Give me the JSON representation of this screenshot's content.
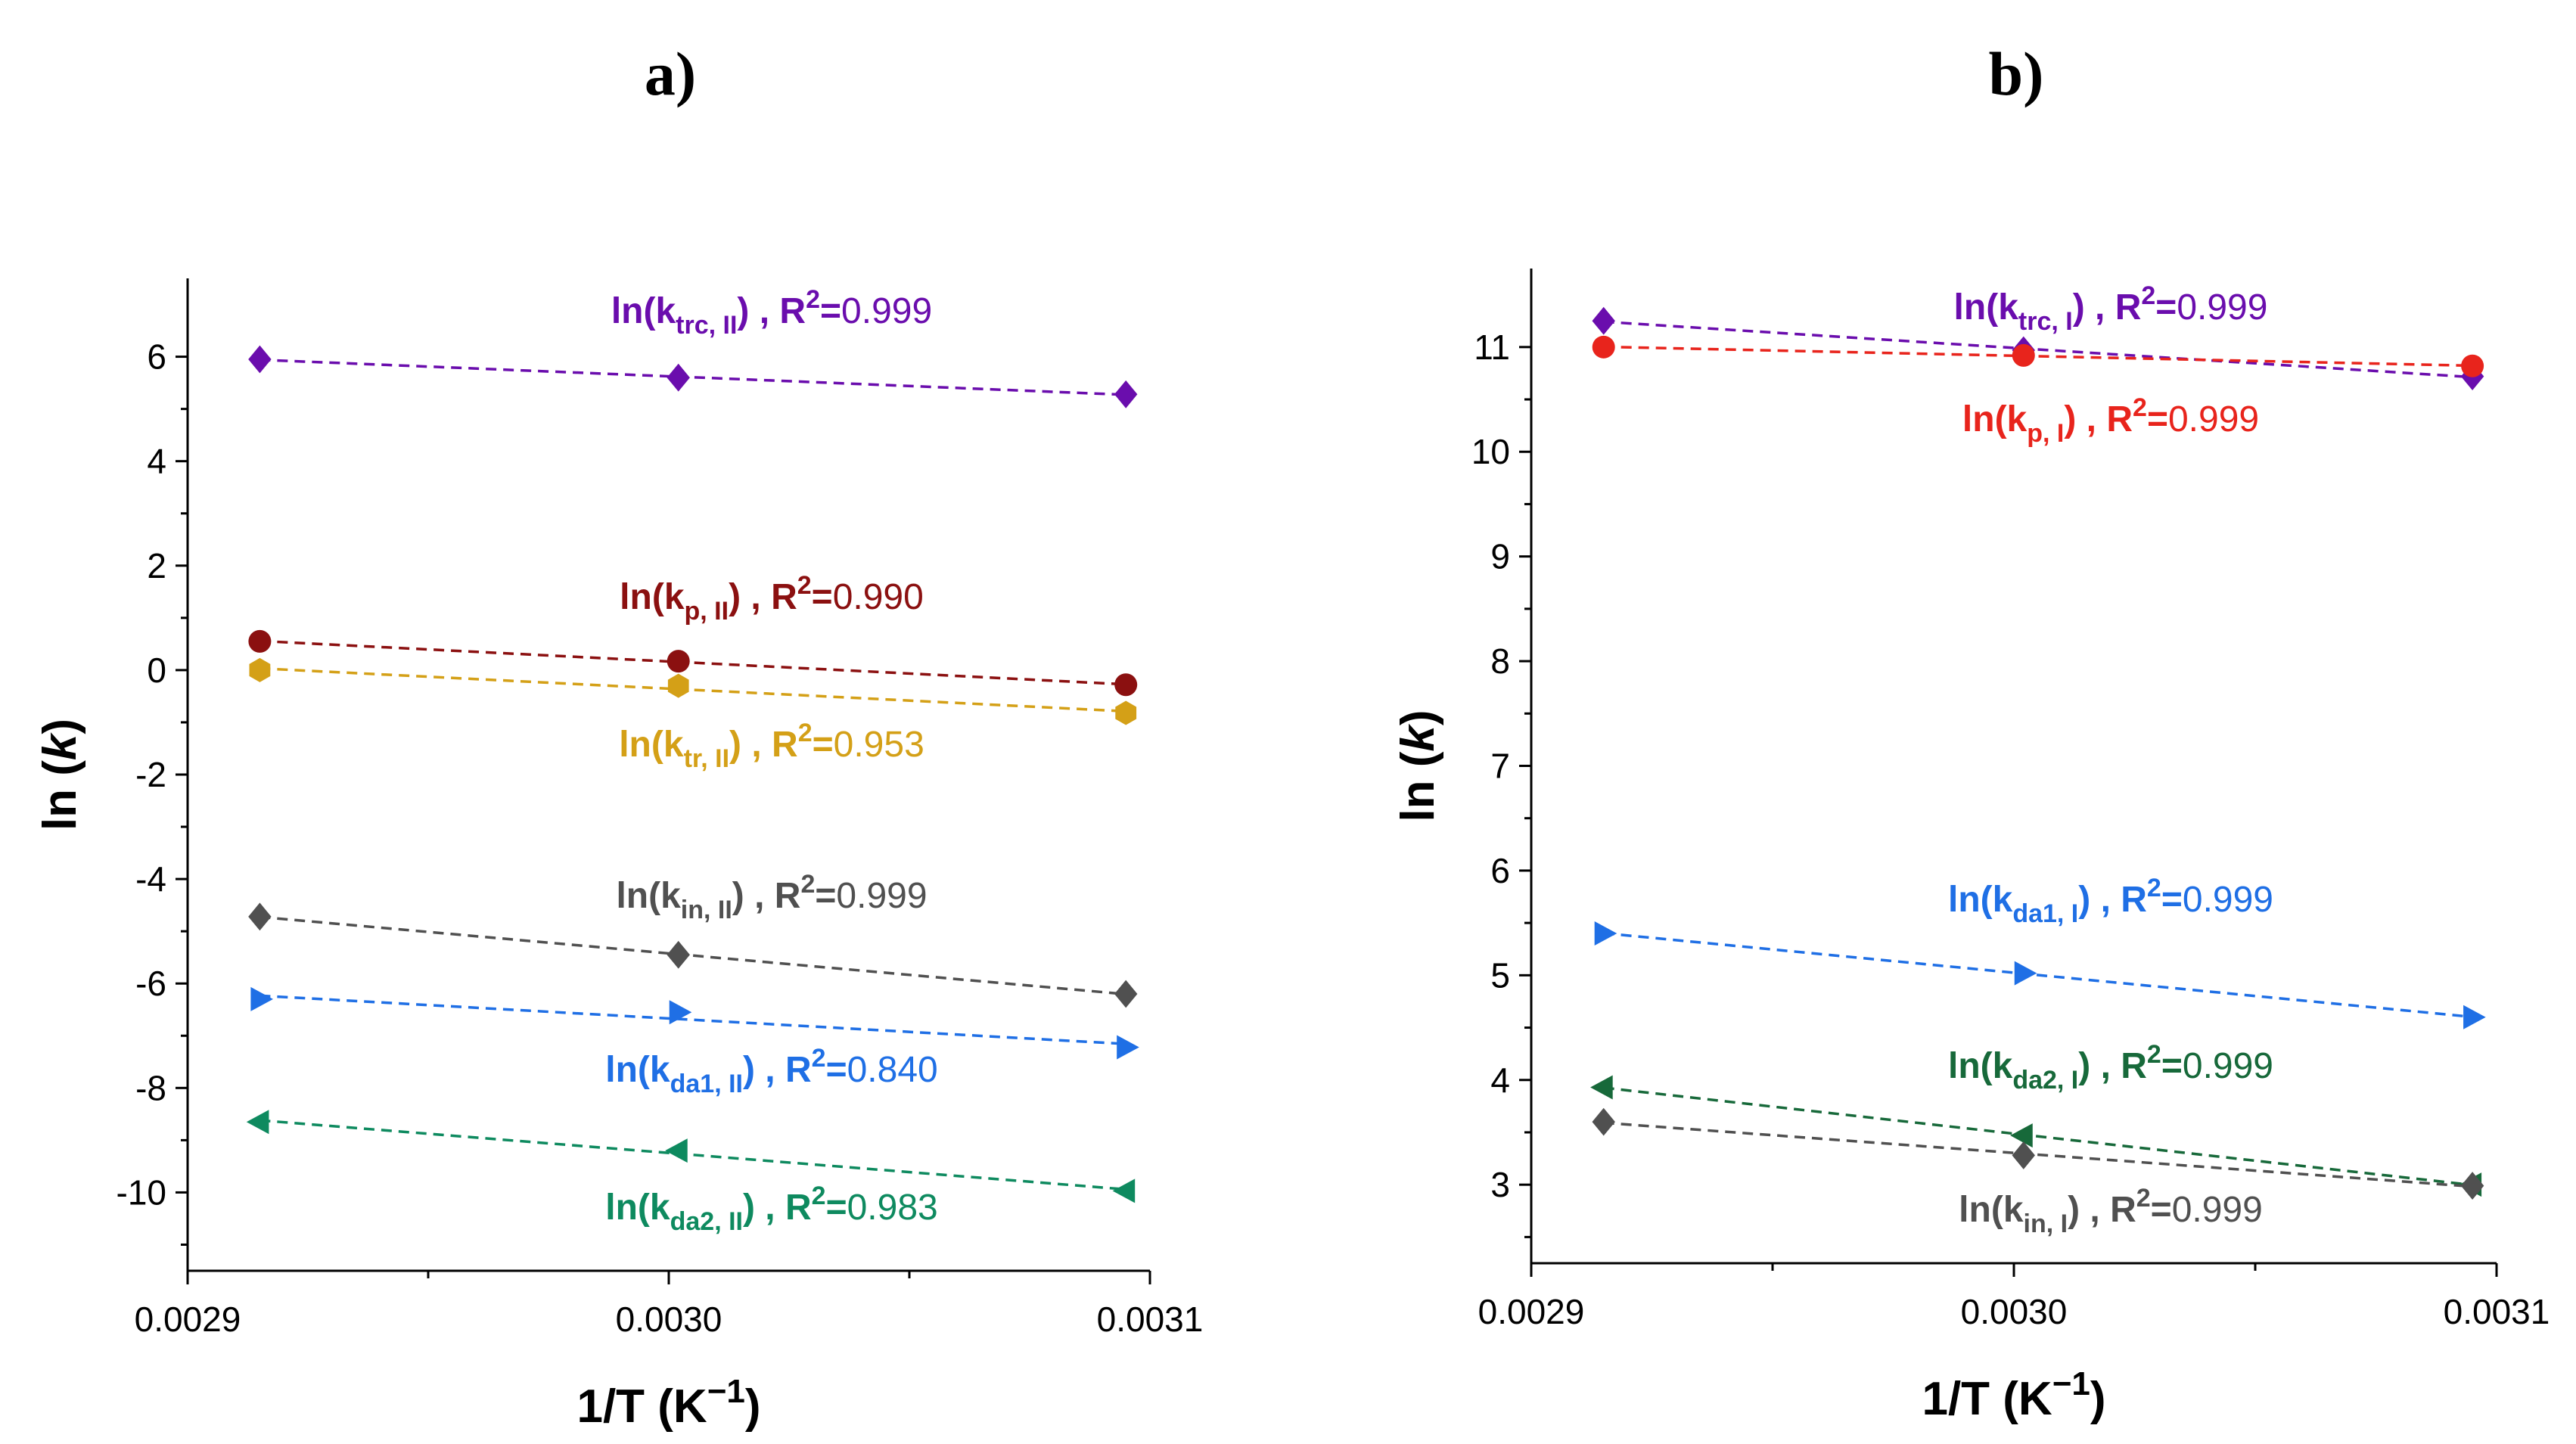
{
  "chart_data": [
    {
      "type": "scatter",
      "panel_label": "a)",
      "xlabel": {
        "main": "1/T (K",
        "sup": "−1",
        "close": ")"
      },
      "ylabel": {
        "main": "ln (",
        "italic": "k",
        "close": ")"
      },
      "xlim": [
        0.0029,
        0.0031
      ],
      "ylim": [
        -11.5,
        7.5
      ],
      "x_ticks": [
        0.0029,
        0.003,
        0.0031
      ],
      "x_tick_labels": [
        "0.0029",
        "0.0030",
        "0.0031"
      ],
      "y_ticks": [
        -10,
        -8,
        -6,
        -4,
        -2,
        0,
        2,
        4,
        6
      ],
      "y_tick_labels": [
        "-10",
        "-8",
        "-6",
        "-4",
        "-2",
        "0",
        "2",
        "4",
        "6"
      ],
      "x": [
        0.002915,
        0.003002,
        0.003095
      ],
      "series": [
        {
          "name": "ln(k_trc,II)",
          "color": "#6a0dad",
          "marker": "diamond",
          "values": [
            5.95,
            5.6,
            5.28
          ],
          "label": {
            "pre": "ln(k",
            "sub": "trc, II",
            "mid": ") , R",
            "sup": "2",
            "eq": "=",
            "val": "0.999"
          }
        },
        {
          "name": "ln(k_p,II)",
          "color": "#8b1010",
          "marker": "circle",
          "values": [
            0.55,
            0.17,
            -0.28
          ],
          "label": {
            "pre": "ln(k",
            "sub": "p, II",
            "mid": ") , R",
            "sup": "2",
            "eq": "=",
            "val": "0.990"
          }
        },
        {
          "name": "ln(k_tr,II)",
          "color": "#d4a017",
          "marker": "hexagon",
          "values": [
            0.0,
            -0.3,
            -0.82
          ],
          "label": {
            "pre": "ln(k",
            "sub": "tr, II",
            "mid": ") , R",
            "sup": "2",
            "eq": "=",
            "val": "0.953"
          }
        },
        {
          "name": "ln(k_in,II)",
          "color": "#505050",
          "marker": "diamond",
          "values": [
            -4.72,
            -5.45,
            -6.2
          ],
          "label": {
            "pre": "ln(k",
            "sub": "in, II",
            "mid": ") , R",
            "sup": "2",
            "eq": "=",
            "val": "0.999"
          }
        },
        {
          "name": "ln(k_da1,II)",
          "color": "#1f6fe5",
          "marker": "triangle-right",
          "values": [
            -6.3,
            -6.55,
            -7.22
          ],
          "label": {
            "pre": "ln(k",
            "sub": "da1, II",
            "mid": ") , R",
            "sup": "2",
            "eq": "=",
            "val": "0.840"
          }
        },
        {
          "name": "ln(k_da2,II)",
          "color": "#0e8a5f",
          "marker": "triangle-left",
          "values": [
            -8.65,
            -9.2,
            -9.97
          ],
          "label": {
            "pre": "ln(k",
            "sub": "da2, II",
            "mid": ") , R",
            "sup": "2",
            "eq": "=",
            "val": "0.983"
          }
        }
      ]
    },
    {
      "type": "scatter",
      "panel_label": "b)",
      "xlabel": {
        "main": "1/T (K",
        "sup": "−1",
        "close": ")"
      },
      "ylabel": {
        "main": "ln (",
        "italic": "k",
        "close": ")"
      },
      "xlim": [
        0.0029,
        0.0031
      ],
      "ylim": [
        2.25,
        11.75
      ],
      "x_ticks": [
        0.0029,
        0.003,
        0.0031
      ],
      "x_tick_labels": [
        "0.0029",
        "0.0030",
        "0.0031"
      ],
      "y_ticks": [
        3,
        4,
        5,
        6,
        7,
        8,
        9,
        10,
        11
      ],
      "y_tick_labels": [
        "3",
        "4",
        "5",
        "6",
        "7",
        "8",
        "9",
        "10",
        "11"
      ],
      "x": [
        0.002915,
        0.003002,
        0.003095
      ],
      "series": [
        {
          "name": "ln(k_trc,I)",
          "color": "#6a0dad",
          "marker": "diamond",
          "values": [
            11.25,
            10.97,
            10.72
          ],
          "label": {
            "pre": "ln(k",
            "sub": "trc, I",
            "mid": ") , R",
            "sup": "2",
            "eq": "=",
            "val": "0.999"
          }
        },
        {
          "name": "ln(k_p,I)",
          "color": "#e8241c",
          "marker": "circle",
          "values": [
            11.0,
            10.92,
            10.82
          ],
          "label": {
            "pre": "ln(k",
            "sub": "p, I",
            "mid": ") , R",
            "sup": "2",
            "eq": "=",
            "val": "0.999"
          }
        },
        {
          "name": "ln(k_da1,I)",
          "color": "#1f6fe5",
          "marker": "triangle-right",
          "values": [
            5.4,
            5.02,
            4.6
          ],
          "label": {
            "pre": "ln(k",
            "sub": "da1, I",
            "mid": ") , R",
            "sup": "2",
            "eq": "=",
            "val": "0.999"
          }
        },
        {
          "name": "ln(k_da2,I)",
          "color": "#17693a",
          "marker": "triangle-left",
          "values": [
            3.93,
            3.47,
            3.0
          ],
          "label": {
            "pre": "ln(k",
            "sub": "da2, I",
            "mid": ") , R",
            "sup": "2",
            "eq": "=",
            "val": "0.999"
          }
        },
        {
          "name": "ln(k_in,I)",
          "color": "#505050",
          "marker": "diamond",
          "values": [
            3.6,
            3.28,
            2.99
          ],
          "label": {
            "pre": "ln(k",
            "sub": "in, I",
            "mid": ") , R",
            "sup": "2",
            "eq": "=",
            "val": "0.999"
          }
        }
      ]
    }
  ]
}
